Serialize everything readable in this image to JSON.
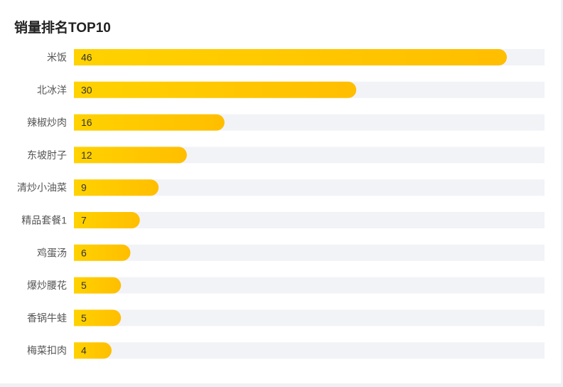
{
  "title": "销量排名TOP10",
  "colors": {
    "bar_start": "#ffd200",
    "bar_end": "#ffbe00",
    "track": "#f2f3f7",
    "label": "#555555",
    "value": "#333333"
  },
  "chart_data": {
    "type": "bar",
    "orientation": "horizontal",
    "title": "销量排名TOP10",
    "categories": [
      "米饭",
      "北冰洋",
      "辣椒炒肉",
      "东坡肘子",
      "清炒小油菜",
      "精品套餐1",
      "鸡蛋汤",
      "爆炒腰花",
      "香锅牛蛙",
      "梅菜扣肉"
    ],
    "values": [
      46,
      30,
      16,
      12,
      9,
      7,
      6,
      5,
      5,
      4
    ],
    "xlim": [
      0,
      50
    ],
    "grid": false,
    "legend": "none",
    "data_labels": "inside-start"
  }
}
